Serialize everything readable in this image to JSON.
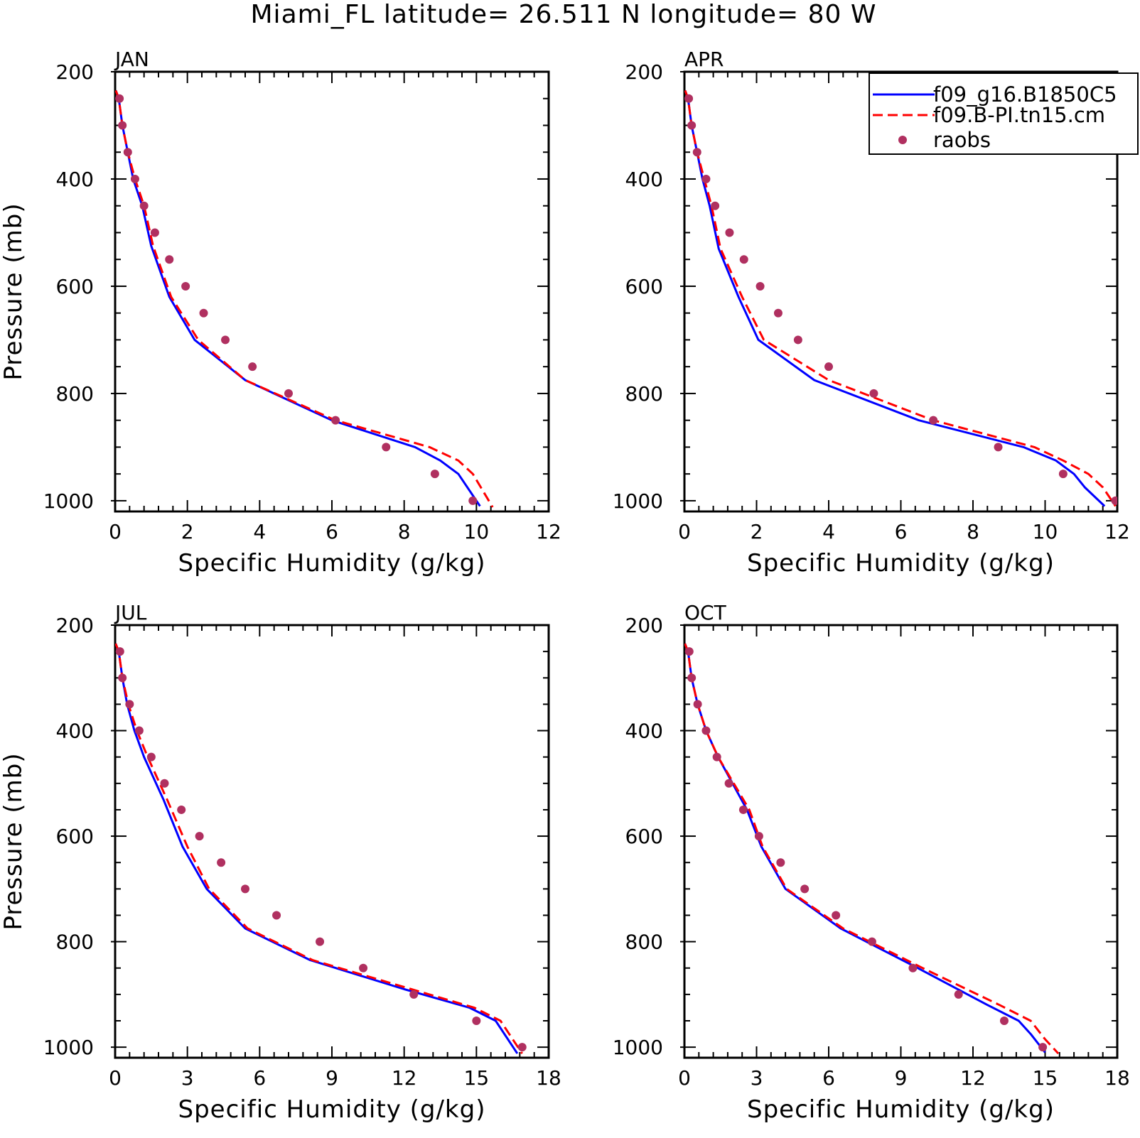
{
  "title": "Miami_FL  latitude= 26.511 N longitude= 80 W",
  "legend": {
    "placement": "top-right of APR panel",
    "entries": [
      {
        "label": "f09_g16.B1850C5",
        "style": "solid",
        "color": "#0000ff"
      },
      {
        "label": "f09.B-PI.tn15.cm",
        "style": "dashed",
        "color": "#ff0000"
      },
      {
        "label": "raobs",
        "style": "marker",
        "color": "#b03060"
      }
    ]
  },
  "colors": {
    "model1": "#0000ff",
    "model2": "#ff0000",
    "obs": "#b03060"
  },
  "chart_data": [
    {
      "type": "line",
      "panel": "JAN",
      "title": "JAN",
      "xlabel": "Specific Humidity (g/kg)",
      "ylabel": "Pressure (mb)",
      "xlim": [
        0,
        12
      ],
      "ylim": [
        200,
        1020
      ],
      "y_inverted": true,
      "xticks": [
        0,
        2,
        4,
        6,
        8,
        10,
        12
      ],
      "yticks": [
        200,
        400,
        600,
        800,
        1000
      ],
      "series": [
        {
          "name": "f09_g16.B1850C5",
          "style": "solid",
          "x": [
            0.02,
            0.1,
            0.2,
            0.35,
            0.5,
            0.75,
            1.0,
            1.5,
            2.2,
            3.6,
            6.0,
            8.3,
            9.0,
            9.5,
            10.1
          ],
          "y": [
            235,
            250,
            300,
            350,
            400,
            450,
            525,
            620,
            700,
            775,
            850,
            900,
            925,
            950,
            1010
          ]
        },
        {
          "name": "f09.B-PI.tn15.cm",
          "style": "dashed",
          "x": [
            0.02,
            0.1,
            0.2,
            0.35,
            0.55,
            0.8,
            1.05,
            1.55,
            2.3,
            3.6,
            6.1,
            8.7,
            9.5,
            9.9,
            10.45
          ],
          "y": [
            235,
            250,
            300,
            350,
            400,
            450,
            525,
            620,
            700,
            775,
            850,
            900,
            925,
            950,
            1012
          ]
        },
        {
          "name": "raobs",
          "style": "marker",
          "x": [
            0.12,
            0.2,
            0.35,
            0.55,
            0.8,
            1.1,
            1.5,
            1.95,
            2.45,
            3.05,
            3.8,
            4.8,
            6.1,
            7.5,
            8.85,
            9.9
          ],
          "y": [
            250,
            300,
            350,
            400,
            450,
            500,
            550,
            600,
            650,
            700,
            750,
            800,
            850,
            900,
            950,
            1000
          ]
        }
      ]
    },
    {
      "type": "line",
      "panel": "APR",
      "title": "APR",
      "xlabel": "Specific Humidity (g/kg)",
      "ylabel": "",
      "xlim": [
        0,
        12
      ],
      "ylim": [
        200,
        1020
      ],
      "y_inverted": true,
      "xticks": [
        0,
        2,
        4,
        6,
        8,
        10,
        12
      ],
      "yticks": [
        200,
        400,
        600,
        800,
        1000
      ],
      "series": [
        {
          "name": "f09_g16.B1850C5",
          "style": "solid",
          "x": [
            0.02,
            0.1,
            0.2,
            0.35,
            0.5,
            0.7,
            0.95,
            1.5,
            2.05,
            3.6,
            6.5,
            9.4,
            10.3,
            10.8,
            11.1,
            11.65
          ],
          "y": [
            235,
            250,
            300,
            350,
            400,
            450,
            530,
            620,
            700,
            775,
            850,
            900,
            925,
            950,
            975,
            1010
          ]
        },
        {
          "name": "f09.B-PI.tn15.cm",
          "style": "dashed",
          "x": [
            0.02,
            0.1,
            0.2,
            0.35,
            0.55,
            0.75,
            1.0,
            1.6,
            2.2,
            4.0,
            6.9,
            9.7,
            10.5,
            11.2,
            11.6,
            11.95
          ],
          "y": [
            235,
            250,
            300,
            350,
            400,
            450,
            530,
            620,
            700,
            775,
            850,
            900,
            925,
            950,
            975,
            1010
          ]
        },
        {
          "name": "raobs",
          "style": "marker",
          "x": [
            0.12,
            0.2,
            0.35,
            0.6,
            0.85,
            1.25,
            1.65,
            2.1,
            2.6,
            3.15,
            4.0,
            5.25,
            6.9,
            8.7,
            10.5,
            11.95
          ],
          "y": [
            250,
            300,
            350,
            400,
            450,
            500,
            550,
            600,
            650,
            700,
            750,
            800,
            850,
            900,
            950,
            1000
          ]
        }
      ]
    },
    {
      "type": "line",
      "panel": "JUL",
      "title": "JUL",
      "xlabel": "Specific Humidity (g/kg)",
      "ylabel": "Pressure (mb)",
      "xlim": [
        0,
        18
      ],
      "ylim": [
        200,
        1020
      ],
      "y_inverted": true,
      "xticks": [
        0,
        3,
        6,
        9,
        12,
        15,
        18
      ],
      "yticks": [
        200,
        400,
        600,
        800,
        1000
      ],
      "series": [
        {
          "name": "f09_g16.B1850C5",
          "style": "solid",
          "x": [
            0.02,
            0.15,
            0.3,
            0.5,
            0.8,
            1.2,
            2.0,
            2.8,
            3.8,
            5.4,
            8.1,
            12.0,
            14.7,
            15.8,
            16.7
          ],
          "y": [
            235,
            250,
            300,
            350,
            400,
            450,
            530,
            620,
            700,
            775,
            835,
            890,
            925,
            950,
            1012
          ]
        },
        {
          "name": "f09.B-PI.tn15.cm",
          "style": "dashed",
          "x": [
            0.02,
            0.15,
            0.3,
            0.55,
            0.9,
            1.35,
            2.15,
            3.0,
            3.9,
            5.5,
            8.2,
            12.3,
            14.9,
            16.0,
            16.9
          ],
          "y": [
            235,
            250,
            300,
            350,
            400,
            450,
            530,
            620,
            700,
            775,
            835,
            890,
            925,
            950,
            1012
          ]
        },
        {
          "name": "raobs",
          "style": "marker",
          "x": [
            0.2,
            0.3,
            0.6,
            1.0,
            1.5,
            2.05,
            2.75,
            3.5,
            4.4,
            5.4,
            6.7,
            8.5,
            10.3,
            12.4,
            15.0,
            16.9
          ],
          "y": [
            250,
            300,
            350,
            400,
            450,
            500,
            550,
            600,
            650,
            700,
            750,
            800,
            850,
            900,
            950,
            1000
          ]
        }
      ]
    },
    {
      "type": "line",
      "panel": "OCT",
      "title": "OCT",
      "xlabel": "Specific Humidity (g/kg)",
      "ylabel": "",
      "xlim": [
        0,
        18
      ],
      "ylim": [
        200,
        1020
      ],
      "y_inverted": true,
      "xticks": [
        0,
        3,
        6,
        9,
        12,
        15,
        18
      ],
      "yticks": [
        200,
        400,
        600,
        800,
        1000
      ],
      "series": [
        {
          "name": "f09_g16.B1850C5",
          "style": "solid",
          "x": [
            0.02,
            0.15,
            0.3,
            0.55,
            0.9,
            1.4,
            2.0,
            2.6,
            3.2,
            4.2,
            6.5,
            9.7,
            12.6,
            13.9,
            14.4,
            15.0
          ],
          "y": [
            235,
            250,
            300,
            350,
            400,
            450,
            500,
            550,
            620,
            700,
            775,
            850,
            920,
            950,
            975,
            1010
          ]
        },
        {
          "name": "f09.B-PI.tn15.cm",
          "style": "dashed",
          "x": [
            0.02,
            0.15,
            0.3,
            0.55,
            0.9,
            1.4,
            2.05,
            2.7,
            3.25,
            4.25,
            6.6,
            9.9,
            13.1,
            14.4,
            15.0,
            15.55
          ],
          "y": [
            235,
            250,
            300,
            350,
            400,
            450,
            500,
            550,
            620,
            700,
            775,
            850,
            920,
            950,
            985,
            1012
          ]
        },
        {
          "name": "raobs",
          "style": "marker",
          "x": [
            0.2,
            0.3,
            0.55,
            0.9,
            1.35,
            1.85,
            2.45,
            3.1,
            4.0,
            5.0,
            6.3,
            7.8,
            9.5,
            11.4,
            13.3,
            14.9
          ],
          "y": [
            250,
            300,
            350,
            400,
            450,
            500,
            550,
            600,
            650,
            700,
            750,
            800,
            850,
            900,
            950,
            1000
          ]
        }
      ]
    }
  ]
}
